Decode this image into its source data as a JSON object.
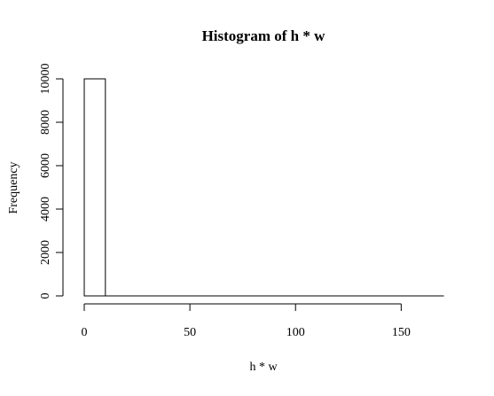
{
  "chart_data": {
    "type": "bar",
    "title": "Histogram of h * w",
    "xlabel": "h * w",
    "ylabel": "Frequency",
    "xlim": [
      0,
      170
    ],
    "ylim": [
      0,
      10000
    ],
    "x_ticks": [
      0,
      50,
      100,
      150
    ],
    "y_ticks": [
      0,
      2000,
      4000,
      6000,
      8000,
      10000
    ],
    "bin_width": 10,
    "bins": [
      {
        "x0": 0,
        "x1": 10,
        "count": 10000
      },
      {
        "x0": 10,
        "x1": 20,
        "count": 0
      },
      {
        "x0": 20,
        "x1": 30,
        "count": 0
      },
      {
        "x0": 30,
        "x1": 40,
        "count": 0
      },
      {
        "x0": 40,
        "x1": 50,
        "count": 0
      },
      {
        "x0": 50,
        "x1": 60,
        "count": 0
      },
      {
        "x0": 60,
        "x1": 70,
        "count": 0
      },
      {
        "x0": 70,
        "x1": 80,
        "count": 0
      },
      {
        "x0": 80,
        "x1": 90,
        "count": 0
      },
      {
        "x0": 90,
        "x1": 100,
        "count": 0
      },
      {
        "x0": 100,
        "x1": 110,
        "count": 0
      },
      {
        "x0": 110,
        "x1": 120,
        "count": 0
      },
      {
        "x0": 120,
        "x1": 130,
        "count": 0
      },
      {
        "x0": 130,
        "x1": 140,
        "count": 0
      },
      {
        "x0": 140,
        "x1": 150,
        "count": 0
      },
      {
        "x0": 150,
        "x1": 160,
        "count": 0
      },
      {
        "x0": 160,
        "x1": 170,
        "count": 0
      }
    ],
    "grid": false,
    "bar_fill": "#ffffff",
    "bar_stroke": "#000000"
  }
}
